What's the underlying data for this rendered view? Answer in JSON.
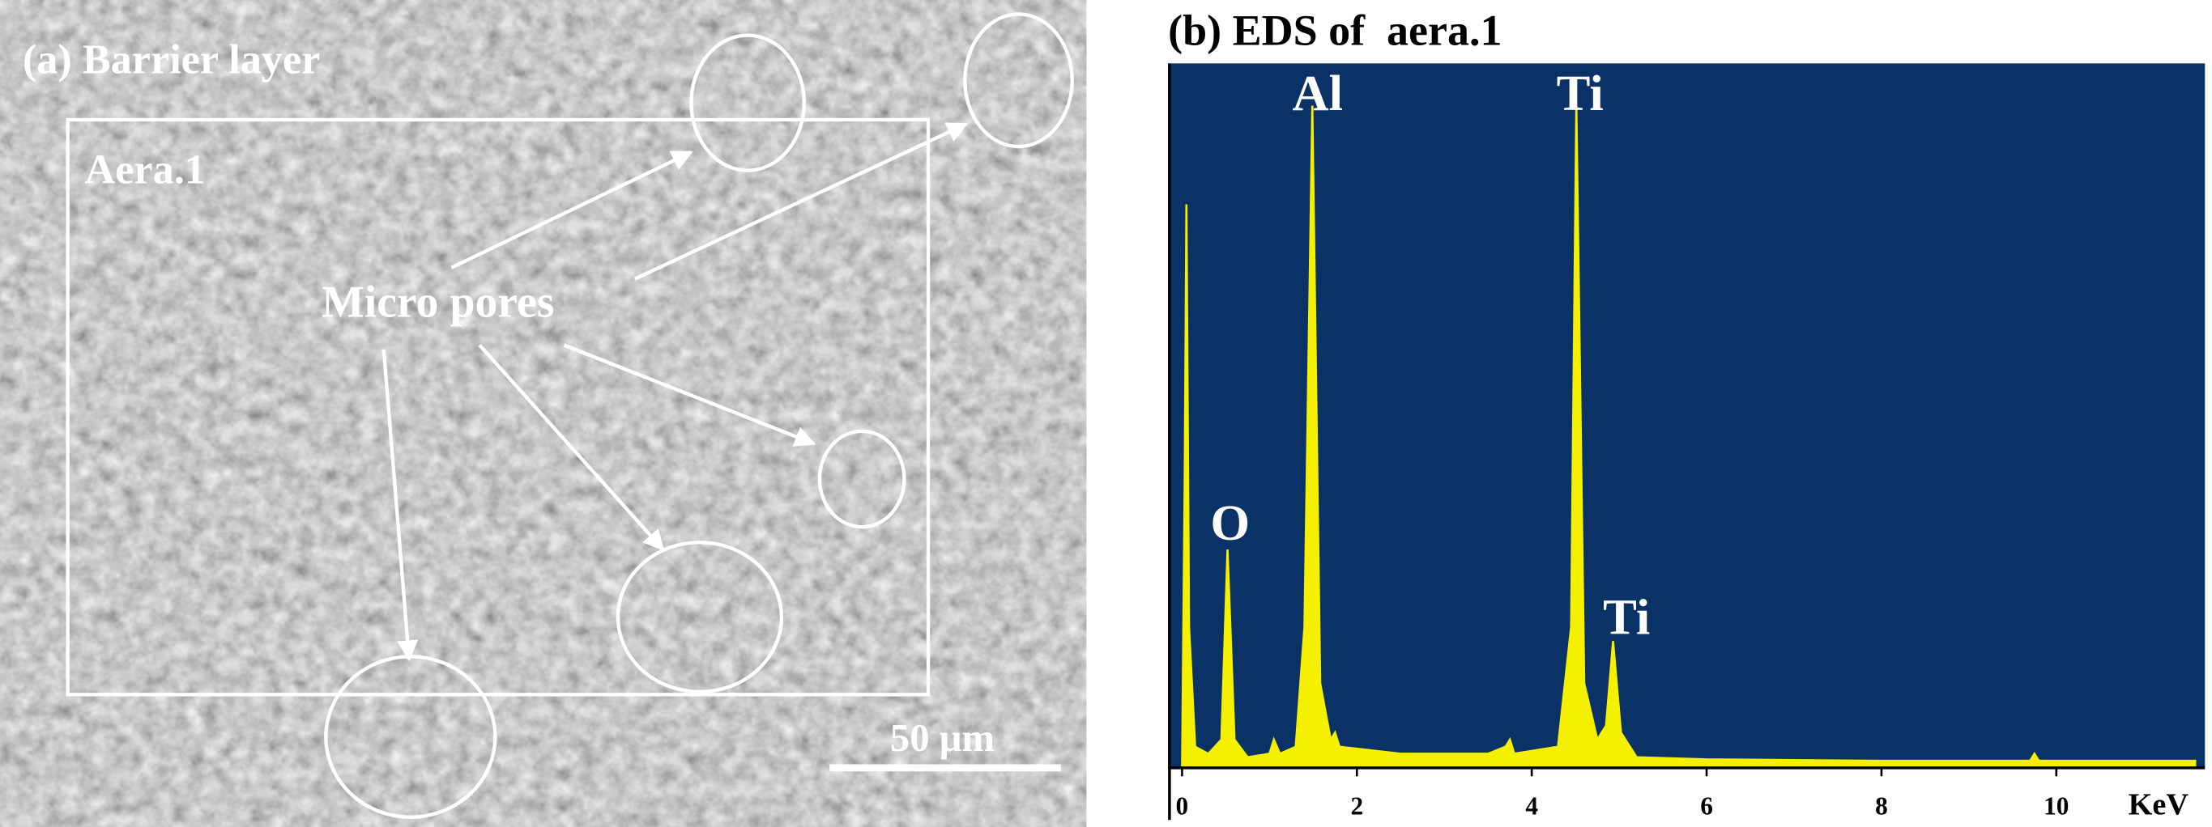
{
  "sem_panel": {
    "title": "(a) Barrier layer",
    "area_label": "Aera.1",
    "callout": "Micro pores",
    "scale_bar": "50 μm"
  },
  "chart_data": {
    "type": "line",
    "title": "(b) EDS of  aera.1",
    "xlabel": "KeV",
    "x": [
      0,
      0.03,
      0.05,
      0.08,
      0.15,
      0.3,
      0.45,
      0.52,
      0.6,
      0.75,
      1.0,
      1.05,
      1.12,
      1.3,
      1.4,
      1.49,
      1.58,
      1.7,
      1.75,
      1.8,
      2.5,
      3.5,
      3.7,
      3.75,
      3.8,
      4.3,
      4.45,
      4.51,
      4.6,
      4.75,
      4.85,
      4.93,
      5.02,
      5.2,
      6,
      8,
      9.7,
      9.75,
      9.8,
      11.6
    ],
    "series": [
      {
        "color": "#f5f000",
        "values": [
          0,
          40,
          80,
          20,
          3,
          2,
          4,
          31,
          4,
          1.5,
          2,
          4,
          2,
          3,
          20,
          94,
          12,
          4,
          5,
          3,
          2,
          2,
          3,
          4,
          2,
          3,
          20,
          94,
          12,
          4,
          6,
          18,
          5,
          1.5,
          1.2,
          1,
          1,
          2,
          1,
          1
        ]
      }
    ],
    "annotations": [
      "O",
      "Al",
      "Ti",
      "Ti"
    ],
    "xlim": [
      -0.16,
      11.7
    ],
    "xticks": [
      0,
      2,
      4,
      6,
      8,
      10
    ],
    "ylim": [
      0,
      100
    ],
    "background": "#0a3266"
  }
}
